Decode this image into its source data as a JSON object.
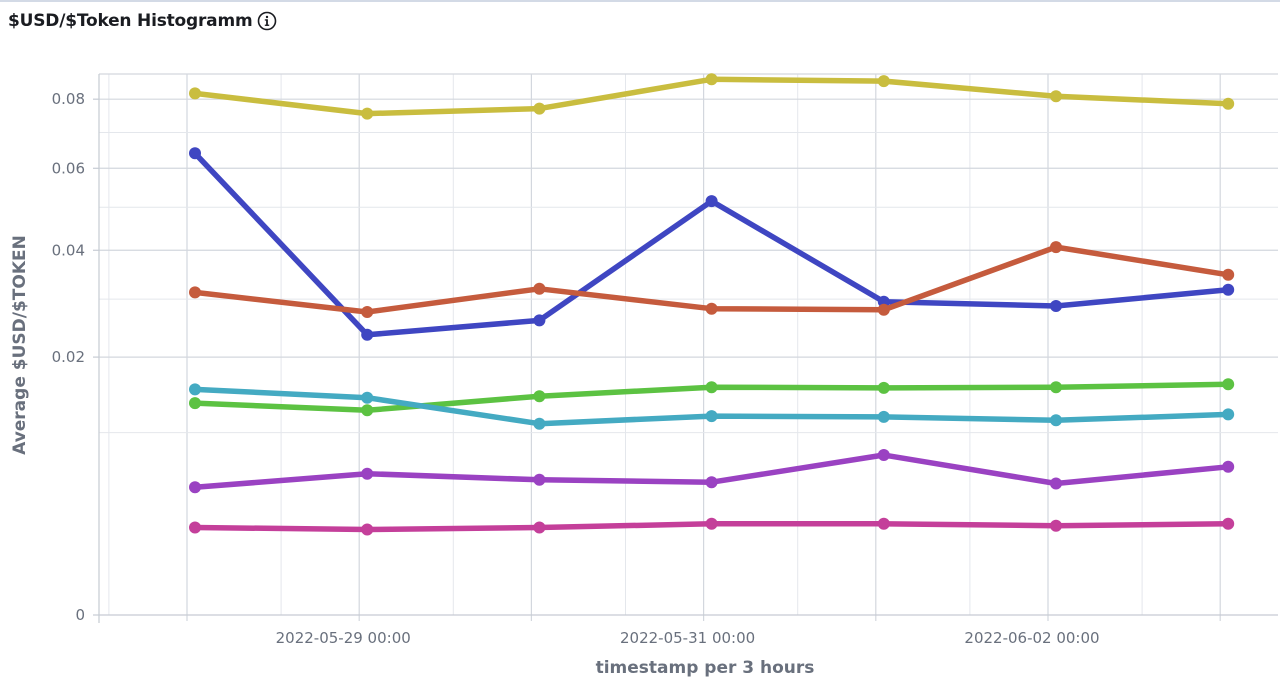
{
  "header": {
    "title": "$USD/$Token Histogramm",
    "info_icon": "info-circle-icon"
  },
  "chart_data": {
    "type": "line",
    "title": "$USD/$Token Histogramm",
    "xlabel": "timestamp per 3 hours",
    "ylabel": "Average $USD/$TOKEN",
    "y_scale": "sqrt",
    "ylim": [
      0,
      0.088
    ],
    "y_ticks": [
      0,
      0.02,
      0.04,
      0.06,
      0.08
    ],
    "y_tick_labels": [
      "0",
      "0.02",
      "0.04",
      "0.06",
      "0.08"
    ],
    "x_tick_labels": [
      "2022-05-29 00:00",
      "2022-05-31 00:00",
      "2022-06-02 00:00"
    ],
    "x": [
      "2022-05-28 03:00",
      "2022-05-29 03:00",
      "2022-05-30 03:00",
      "2022-05-31 03:00",
      "2022-06-01 03:00",
      "2022-06-02 03:00",
      "2022-06-03 03:00"
    ],
    "grid": true,
    "legend": "none",
    "series": [
      {
        "color": "#c9bd3f",
        "values": [
          0.0818,
          0.0756,
          0.0771,
          0.0863,
          0.0857,
          0.0809,
          0.0786
        ]
      },
      {
        "color": "#3f46c2",
        "values": [
          0.0641,
          0.0236,
          0.0261,
          0.0515,
          0.0295,
          0.0287,
          0.0318
        ]
      },
      {
        "color": "#c55b3d",
        "values": [
          0.0313,
          0.0276,
          0.032,
          0.0282,
          0.028,
          0.0407,
          0.0348
        ]
      },
      {
        "color": "#5cc242",
        "values": [
          0.0135,
          0.0126,
          0.0144,
          0.0156,
          0.0155,
          0.0156,
          0.016
        ]
      },
      {
        "color": "#44aac2",
        "values": [
          0.0153,
          0.0142,
          0.011,
          0.0119,
          0.0118,
          0.0114,
          0.0121
        ]
      },
      {
        "color": "#9a42c2",
        "values": [
          0.0049,
          0.006,
          0.0055,
          0.0053,
          0.0077,
          0.0052,
          0.0066
        ]
      },
      {
        "color": "#c43f9a",
        "values": [
          0.0023,
          0.0022,
          0.0023,
          0.0025,
          0.0025,
          0.0024,
          0.0025
        ]
      }
    ]
  }
}
